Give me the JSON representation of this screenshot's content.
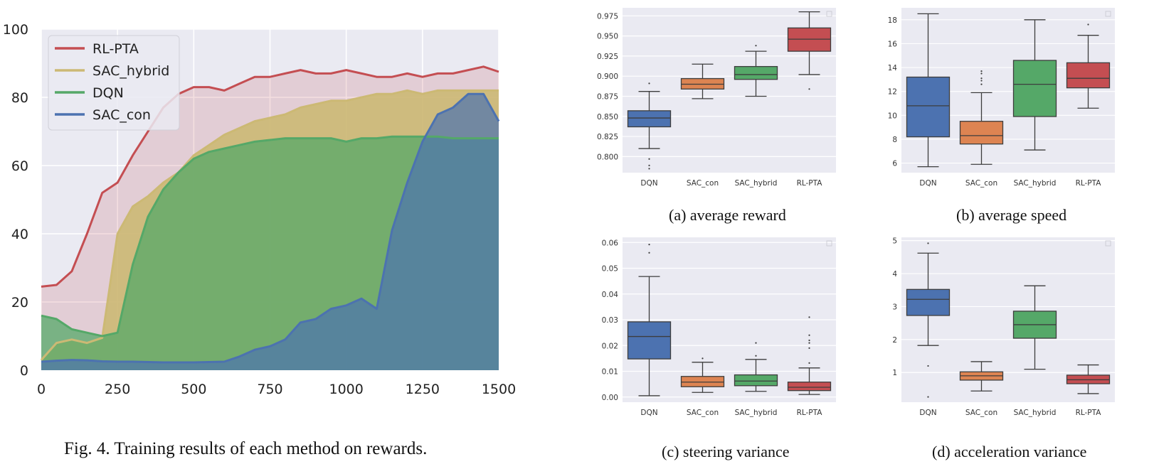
{
  "figure": {
    "left_caption": "Fig. 4.   Training results of each method on rewards.",
    "captions": [
      "(a)  average reward",
      "(b)  average speed",
      "(c)  steering variance",
      "(d)  acceleration variance"
    ]
  },
  "colors": {
    "red": "#c44e52",
    "yellow": "#ccb974",
    "green": "#55a868",
    "blue": "#4c72b0",
    "orange": "#dd8452",
    "plot_bg": "#eaeaf2",
    "grid": "#ffffff"
  },
  "chart_data": [
    {
      "type": "area",
      "title": "",
      "xlabel": "",
      "ylabel": "",
      "xlim": [
        0,
        1500
      ],
      "ylim": [
        0,
        100
      ],
      "xticks": [
        0,
        250,
        500,
        750,
        1000,
        1250,
        1500
      ],
      "yticks": [
        0,
        20,
        40,
        60,
        80,
        100
      ],
      "legend": {
        "position": "top-left",
        "entries": [
          "RL-PTA",
          "SAC_hybrid",
          "DQN",
          "SAC_con"
        ]
      },
      "series": [
        {
          "name": "RL-PTA",
          "color": "#c44e52",
          "x": [
            0,
            50,
            100,
            150,
            200,
            250,
            300,
            350,
            400,
            450,
            500,
            550,
            600,
            650,
            700,
            750,
            800,
            850,
            900,
            950,
            1000,
            1050,
            1100,
            1150,
            1200,
            1250,
            1300,
            1350,
            1400,
            1450,
            1500
          ],
          "y": [
            24.5,
            25,
            29,
            40,
            52,
            55,
            63,
            70,
            77,
            81,
            83,
            83,
            82,
            84,
            86,
            86,
            87,
            88,
            87,
            87,
            88,
            87,
            86,
            86,
            87,
            86,
            87,
            87,
            88,
            89,
            87.5
          ]
        },
        {
          "name": "SAC_hybrid",
          "color": "#ccb974",
          "x": [
            0,
            50,
            100,
            150,
            200,
            250,
            300,
            350,
            400,
            450,
            500,
            550,
            600,
            650,
            700,
            750,
            800,
            850,
            900,
            950,
            1000,
            1050,
            1100,
            1150,
            1200,
            1250,
            1300,
            1350,
            1400,
            1450,
            1500
          ],
          "y": [
            3,
            8,
            9,
            8,
            9.5,
            40,
            48,
            51,
            55,
            58,
            63,
            66,
            69,
            71,
            73,
            74,
            75,
            77,
            78,
            79,
            79,
            80,
            81,
            81,
            82,
            81,
            82,
            82,
            82,
            82,
            82
          ]
        },
        {
          "name": "DQN",
          "color": "#55a868",
          "x": [
            0,
            50,
            100,
            150,
            200,
            250,
            300,
            350,
            400,
            450,
            500,
            550,
            600,
            650,
            700,
            750,
            800,
            850,
            900,
            950,
            1000,
            1050,
            1100,
            1150,
            1200,
            1250,
            1300,
            1350,
            1400,
            1450,
            1500
          ],
          "y": [
            16,
            15,
            12,
            11,
            10,
            11,
            31,
            45,
            53,
            58,
            62,
            64,
            65,
            66,
            67,
            67.5,
            68,
            68,
            68,
            68,
            67,
            68,
            68,
            68.5,
            68.5,
            68.5,
            68.5,
            68,
            68,
            68,
            68
          ]
        },
        {
          "name": "SAC_con",
          "color": "#4c72b0",
          "x": [
            0,
            50,
            100,
            150,
            200,
            250,
            300,
            350,
            400,
            450,
            500,
            550,
            600,
            650,
            700,
            750,
            800,
            850,
            900,
            950,
            1000,
            1050,
            1100,
            1150,
            1200,
            1250,
            1300,
            1350,
            1400,
            1450,
            1500
          ],
          "y": [
            2.5,
            2.8,
            3,
            2.9,
            2.6,
            2.5,
            2.5,
            2.4,
            2.3,
            2.3,
            2.3,
            2.4,
            2.5,
            4,
            6,
            7,
            9,
            14,
            15,
            18,
            19,
            21,
            18,
            41,
            55,
            67,
            75,
            77,
            81,
            81,
            73
          ]
        }
      ]
    },
    {
      "type": "box",
      "title": "(a)  average reward",
      "categories": [
        "DQN",
        "SAC_con",
        "SAC_hybrid",
        "RL-PTA"
      ],
      "ylim": [
        0.78,
        0.985
      ],
      "yticks": [
        0.8,
        0.825,
        0.85,
        0.875,
        0.9,
        0.925,
        0.95,
        0.975
      ],
      "ytick_labels": [
        "0.800",
        "0.825",
        "0.850",
        "0.875",
        "0.900",
        "0.925",
        "0.950",
        "0.975"
      ],
      "boxes": [
        {
          "name": "DQN",
          "color": "#4c72b0",
          "min": 0.81,
          "q1": 0.837,
          "median": 0.848,
          "q3": 0.857,
          "max": 0.881,
          "outliers": [
            0.891,
            0.797,
            0.789,
            0.785
          ]
        },
        {
          "name": "SAC_con",
          "color": "#dd8452",
          "min": 0.872,
          "q1": 0.884,
          "median": 0.89,
          "q3": 0.897,
          "max": 0.915,
          "outliers": []
        },
        {
          "name": "SAC_hybrid",
          "color": "#55a868",
          "min": 0.875,
          "q1": 0.896,
          "median": 0.902,
          "q3": 0.912,
          "max": 0.931,
          "outliers": [
            0.938
          ]
        },
        {
          "name": "RL-PTA",
          "color": "#c44e52",
          "min": 0.902,
          "q1": 0.931,
          "median": 0.946,
          "q3": 0.96,
          "max": 0.98,
          "outliers": [
            0.884
          ]
        }
      ]
    },
    {
      "type": "box",
      "title": "(b)  average speed",
      "categories": [
        "DQN",
        "SAC_con",
        "SAC_hybrid",
        "RL-PTA"
      ],
      "ylim": [
        5.2,
        19
      ],
      "yticks": [
        6,
        8,
        10,
        12,
        14,
        16,
        18
      ],
      "ytick_labels": [
        "6",
        "8",
        "10",
        "12",
        "14",
        "16",
        "18"
      ],
      "boxes": [
        {
          "name": "DQN",
          "color": "#4c72b0",
          "min": 5.7,
          "q1": 8.2,
          "median": 10.8,
          "q3": 13.2,
          "max": 18.5,
          "outliers": []
        },
        {
          "name": "SAC_con",
          "color": "#dd8452",
          "min": 5.9,
          "q1": 7.6,
          "median": 8.3,
          "q3": 9.5,
          "max": 11.9,
          "outliers": [
            12.6,
            12.9,
            13.1,
            13.5,
            13.7
          ]
        },
        {
          "name": "SAC_hybrid",
          "color": "#55a868",
          "min": 7.1,
          "q1": 9.9,
          "median": 12.6,
          "q3": 14.6,
          "max": 18.0,
          "outliers": []
        },
        {
          "name": "RL-PTA",
          "color": "#c44e52",
          "min": 10.6,
          "q1": 12.3,
          "median": 13.1,
          "q3": 14.4,
          "max": 16.7,
          "outliers": [
            17.6
          ]
        }
      ]
    },
    {
      "type": "box",
      "title": "(c)  steering variance",
      "categories": [
        "DQN",
        "SAC_con",
        "SAC_hybrid",
        "RL-PTA"
      ],
      "ylim": [
        -0.002,
        0.062
      ],
      "yticks": [
        0.0,
        0.01,
        0.02,
        0.03,
        0.04,
        0.05,
        0.06
      ],
      "ytick_labels": [
        "0.00",
        "0.01",
        "0.02",
        "0.03",
        "0.04",
        "0.05",
        "0.06"
      ],
      "boxes": [
        {
          "name": "DQN",
          "color": "#4c72b0",
          "min": 0.0005,
          "q1": 0.0148,
          "median": 0.0235,
          "q3": 0.0292,
          "max": 0.0468,
          "outliers": [
            0.056,
            0.0592
          ]
        },
        {
          "name": "SAC_con",
          "color": "#dd8452",
          "min": 0.0018,
          "q1": 0.004,
          "median": 0.0058,
          "q3": 0.008,
          "max": 0.0135,
          "outliers": [
            0.015
          ]
        },
        {
          "name": "SAC_hybrid",
          "color": "#55a868",
          "min": 0.0022,
          "q1": 0.0044,
          "median": 0.0062,
          "q3": 0.0086,
          "max": 0.0146,
          "outliers": [
            0.016,
            0.021
          ]
        },
        {
          "name": "RL-PTA",
          "color": "#c44e52",
          "min": 0.001,
          "q1": 0.0025,
          "median": 0.0038,
          "q3": 0.0058,
          "max": 0.0113,
          "outliers": [
            0.0132,
            0.019,
            0.021,
            0.022,
            0.024,
            0.031
          ]
        }
      ]
    },
    {
      "type": "box",
      "title": "(d)  acceleration variance",
      "categories": [
        "DQN",
        "SAC_con",
        "SAC_hybrid",
        "RL-PTA"
      ],
      "ylim": [
        0.1,
        5.1
      ],
      "yticks": [
        1,
        2,
        3,
        4,
        5
      ],
      "ytick_labels": [
        "1",
        "2",
        "3",
        "4",
        "5"
      ],
      "boxes": [
        {
          "name": "DQN",
          "color": "#4c72b0",
          "min": 1.82,
          "q1": 2.73,
          "median": 3.22,
          "q3": 3.52,
          "max": 4.62,
          "outliers": [
            4.92,
            1.2,
            0.26
          ]
        },
        {
          "name": "SAC_con",
          "color": "#dd8452",
          "min": 0.44,
          "q1": 0.77,
          "median": 0.9,
          "q3": 1.02,
          "max": 1.33,
          "outliers": []
        },
        {
          "name": "SAC_hybrid",
          "color": "#55a868",
          "min": 1.1,
          "q1": 2.04,
          "median": 2.45,
          "q3": 2.86,
          "max": 3.63,
          "outliers": []
        },
        {
          "name": "RL-PTA",
          "color": "#c44e52",
          "min": 0.36,
          "q1": 0.66,
          "median": 0.78,
          "q3": 0.92,
          "max": 1.23,
          "outliers": []
        }
      ]
    }
  ]
}
